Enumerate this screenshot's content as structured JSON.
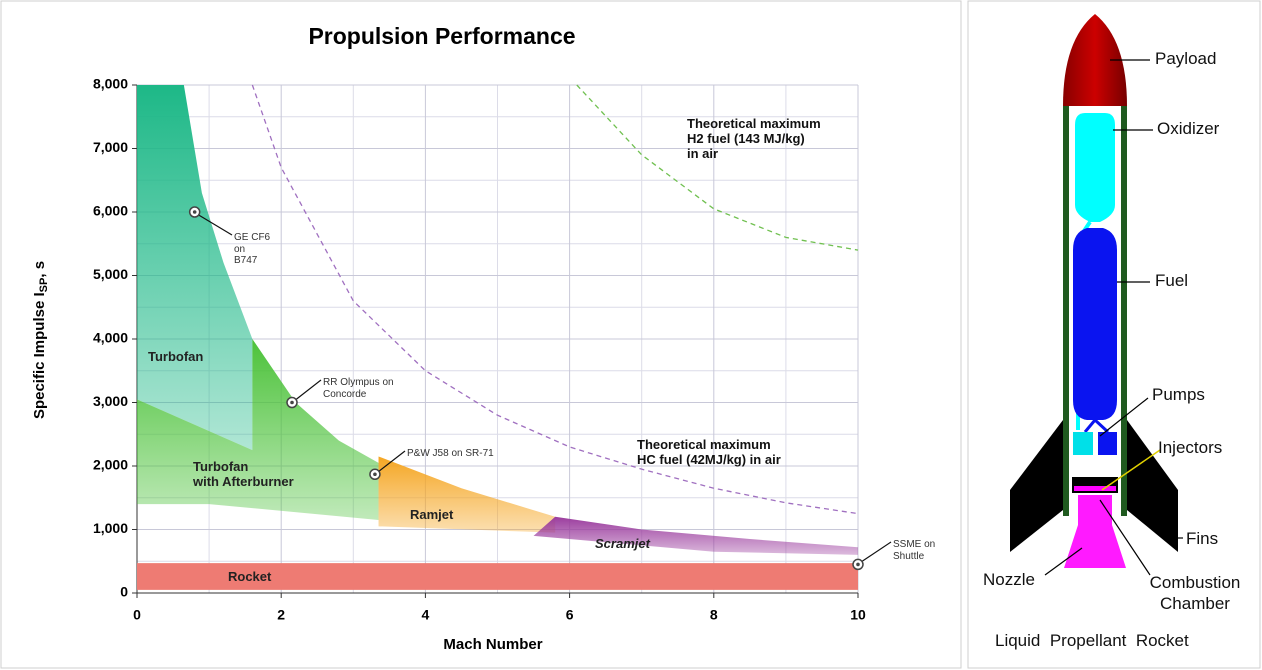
{
  "chart_data": {
    "type": "area",
    "title": "Propulsion Performance",
    "x_label": "Mach Number",
    "y_label": {
      "text": "Specific Impulse I",
      "subscript": "SP",
      "suffix": ", s"
    },
    "xlim": [
      0,
      10
    ],
    "ylim": [
      0,
      8000
    ],
    "xticks": [
      0,
      2,
      4,
      6,
      8,
      10
    ],
    "yticks": [
      0,
      {
        "value": 1000,
        "label": "1,000"
      },
      {
        "value": 2000,
        "label": "2,000"
      },
      {
        "value": 3000,
        "label": "3,000"
      },
      {
        "value": 4000,
        "label": "4,000"
      },
      {
        "value": 5000,
        "label": "5,000"
      },
      {
        "value": 6000,
        "label": "6,000"
      },
      {
        "value": 7000,
        "label": "7,000"
      },
      {
        "value": 8000,
        "label": "8,000"
      }
    ],
    "grid": true,
    "series": [
      {
        "name": "Turbofan",
        "color": "#1db887",
        "x": [
          0,
          0.65,
          0.9,
          1.2,
          1.6,
          1.6,
          0
        ],
        "y": [
          8000,
          8000,
          6300,
          5200,
          4000,
          2250,
          3050
        ]
      },
      {
        "name": "Turbofan\nwith Afterburner",
        "color": "#4cc23a",
        "x": [
          0,
          1.6,
          1.6,
          2.2,
          2.8,
          3.35,
          3.35,
          1,
          0
        ],
        "y": [
          3050,
          2250,
          4000,
          3000,
          2400,
          2050,
          1150,
          1400,
          1400
        ]
      },
      {
        "name": "Ramjet",
        "color": "#f5a623",
        "x": [
          3.35,
          4.5,
          5.8,
          5.8,
          3.35
        ],
        "y": [
          2150,
          1650,
          1200,
          950,
          1050
        ]
      },
      {
        "name": "Scramjet",
        "color": "#9b3d9e",
        "italic": true,
        "x": [
          5.8,
          7,
          8.5,
          10,
          10,
          8,
          5.5
        ],
        "y": [
          1200,
          1000,
          850,
          720,
          600,
          650,
          900
        ]
      },
      {
        "name": "Rocket",
        "color": "#ee7b73",
        "x": [
          0,
          10,
          10,
          0
        ],
        "y": [
          50,
          50,
          470,
          470
        ]
      }
    ],
    "lines": [
      {
        "label": "Theoretical maximum\nH2 fuel (143 MJ/kg)\nin air",
        "color": "#70c050",
        "x": [
          6.1,
          7,
          8,
          9,
          10
        ],
        "y": [
          8000,
          6900,
          6050,
          5600,
          5400
        ]
      },
      {
        "label": "Theoretical maximum\nHC fuel (42MJ/kg) in air",
        "color": "#a070c0",
        "x": [
          1.6,
          2,
          3,
          4,
          5,
          6,
          7,
          8,
          9,
          10
        ],
        "y": [
          8000,
          6700,
          4600,
          3500,
          2800,
          2300,
          1950,
          1650,
          1420,
          1250
        ]
      }
    ],
    "annotations": [
      {
        "text": "GE CF6\non\nB747",
        "x": 0.8,
        "y": 6000
      },
      {
        "text": "RR Olympus on\nConcorde",
        "x": 2.15,
        "y": 3000
      },
      {
        "text": "P&W J58 on SR-71",
        "x": 3.3,
        "y": 1870
      },
      {
        "text": "SSME on\nShuttle",
        "x": 10,
        "y": 450
      }
    ]
  },
  "diagram": {
    "labels": [
      "Payload",
      "Oxidizer",
      "Fuel",
      "Pumps",
      "Injectors",
      "Fins",
      "Nozzle",
      "Combustion\nChamber"
    ],
    "caption": "Liquid  Propellant  Rocket"
  }
}
